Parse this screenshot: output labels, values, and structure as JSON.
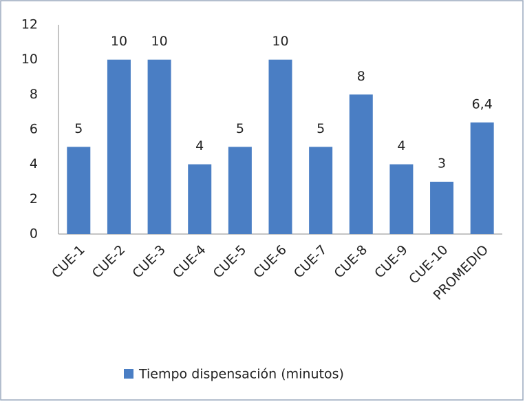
{
  "chart_data": {
    "type": "bar",
    "categories": [
      "CUE-1",
      "CUE-2",
      "CUE-3",
      "CUE-4",
      "CUE-5",
      "CUE-6",
      "CUE-7",
      "CUE-8",
      "CUE-9",
      "CUE-10",
      "PROMEDIO"
    ],
    "series": [
      {
        "name": "Tiempo dispensación (minutos)",
        "color": "#4a7ec4",
        "values": [
          5,
          10,
          10,
          4,
          5,
          10,
          5,
          8,
          4,
          3,
          6.4
        ],
        "value_labels": [
          "5",
          "10",
          "10",
          "4",
          "5",
          "10",
          "5",
          "8",
          "4",
          "3",
          "6,4"
        ]
      }
    ],
    "ylim": [
      0,
      12
    ],
    "yticks": [
      0,
      2,
      4,
      6,
      8,
      10,
      12
    ],
    "grid": false,
    "legend": "bottom"
  }
}
